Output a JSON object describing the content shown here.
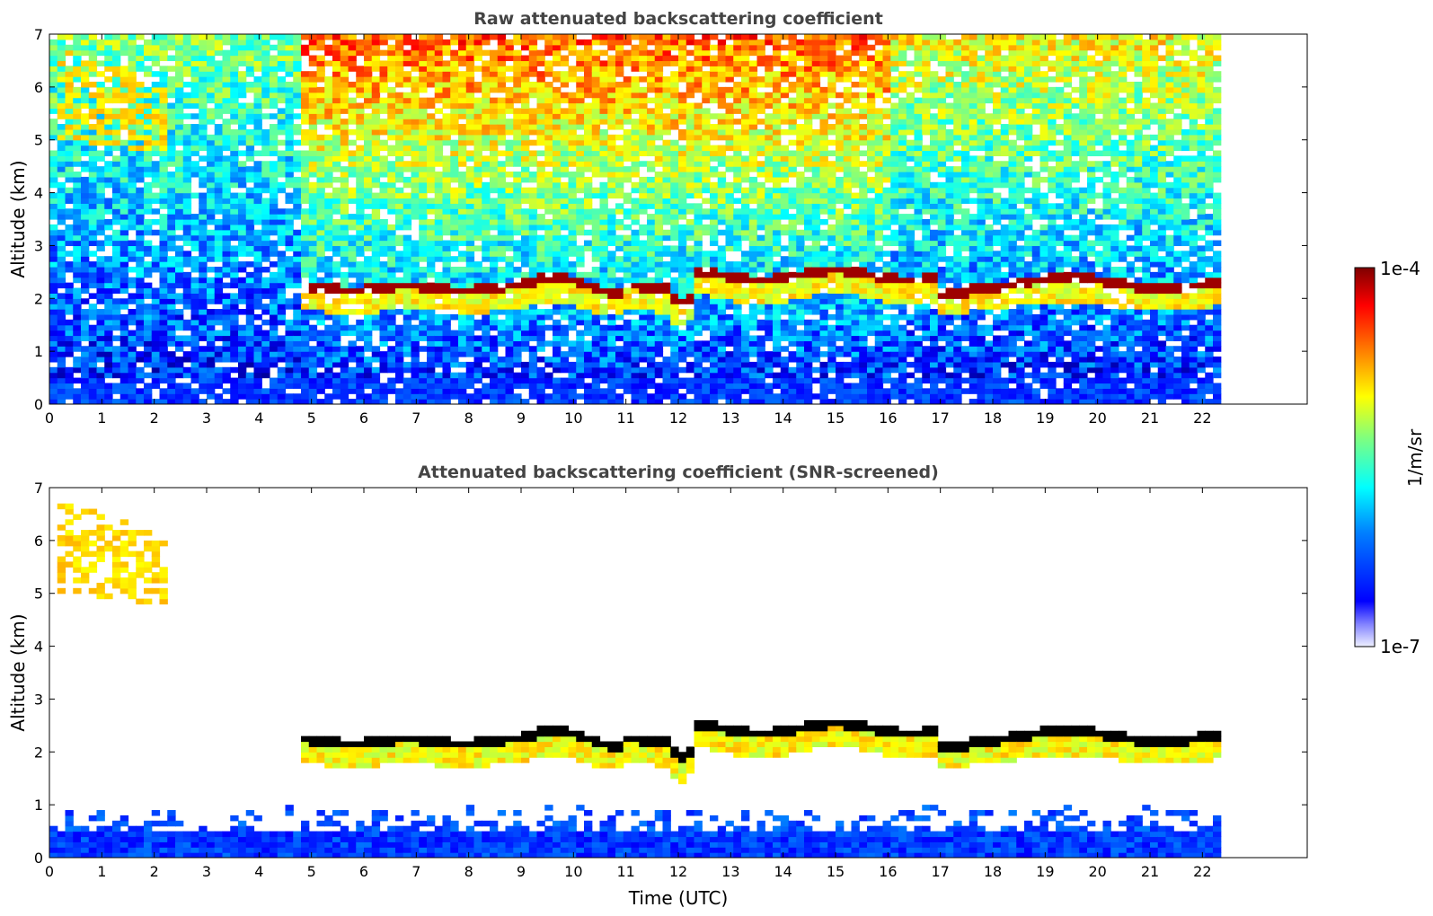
{
  "chart_data": [
    {
      "type": "heatmap",
      "title": "Raw attenuated backscattering coefficient",
      "xlabel": "",
      "ylabel": "Altitude (km)",
      "xlim": [
        0,
        24
      ],
      "ylim": [
        0,
        7
      ],
      "x_ticks": [
        0,
        1,
        2,
        3,
        4,
        5,
        6,
        7,
        8,
        9,
        10,
        11,
        12,
        13,
        14,
        15,
        16,
        17,
        18,
        19,
        20,
        21,
        22
      ],
      "y_ticks": [
        0,
        1,
        2,
        3,
        4,
        5,
        6,
        7
      ],
      "data_extent_hours": [
        0,
        22.3
      ],
      "features": [
        {
          "kind": "cloud_top_layer",
          "time_range": [
            4.8,
            22.3
          ],
          "altitude_km": [
            1.7,
            2.6
          ],
          "value": "1e-4"
        },
        {
          "kind": "high_cloud",
          "time_range": [
            0.1,
            2.3
          ],
          "altitude_km": [
            5.0,
            7.0
          ],
          "value": "moderate"
        },
        {
          "kind": "boundary_layer",
          "time_range": [
            0,
            22.3
          ],
          "altitude_km": [
            0,
            0.5
          ],
          "value": "low"
        }
      ],
      "grid": false
    },
    {
      "type": "heatmap",
      "title": "Attenuated backscattering coefficient (SNR-screened)",
      "xlabel": "Time (UTC)",
      "ylabel": "Altitude (km)",
      "xlim": [
        0,
        24
      ],
      "ylim": [
        0,
        7
      ],
      "x_ticks": [
        0,
        1,
        2,
        3,
        4,
        5,
        6,
        7,
        8,
        9,
        10,
        11,
        12,
        13,
        14,
        15,
        16,
        17,
        18,
        19,
        20,
        21,
        22
      ],
      "y_ticks": [
        0,
        1,
        2,
        3,
        4,
        5,
        6,
        7
      ],
      "data_extent_hours": [
        0,
        22.3
      ],
      "features": [
        {
          "kind": "cloud_top_layer",
          "time_range": [
            4.8,
            22.3
          ],
          "altitude_km": [
            1.6,
            2.6
          ],
          "value": "saturated"
        },
        {
          "kind": "high_cloud",
          "time_range": [
            0.2,
            2.0
          ],
          "altitude_km": [
            4.9,
            6.3
          ],
          "value": "moderate"
        },
        {
          "kind": "boundary_layer",
          "time_range": [
            0,
            22.3
          ],
          "altitude_km": [
            0,
            1.0
          ],
          "value": "low"
        }
      ],
      "grid": false
    }
  ],
  "colorbar": {
    "label": "1/m/sr",
    "max_label": "1e-4",
    "min_label": "1e-7",
    "scale": "log",
    "colormap": "jet",
    "colors": [
      "#00007f",
      "#0000ff",
      "#007fff",
      "#00ffff",
      "#7fff7f",
      "#ffff00",
      "#ff7f00",
      "#ff0000",
      "#7f0000"
    ]
  }
}
